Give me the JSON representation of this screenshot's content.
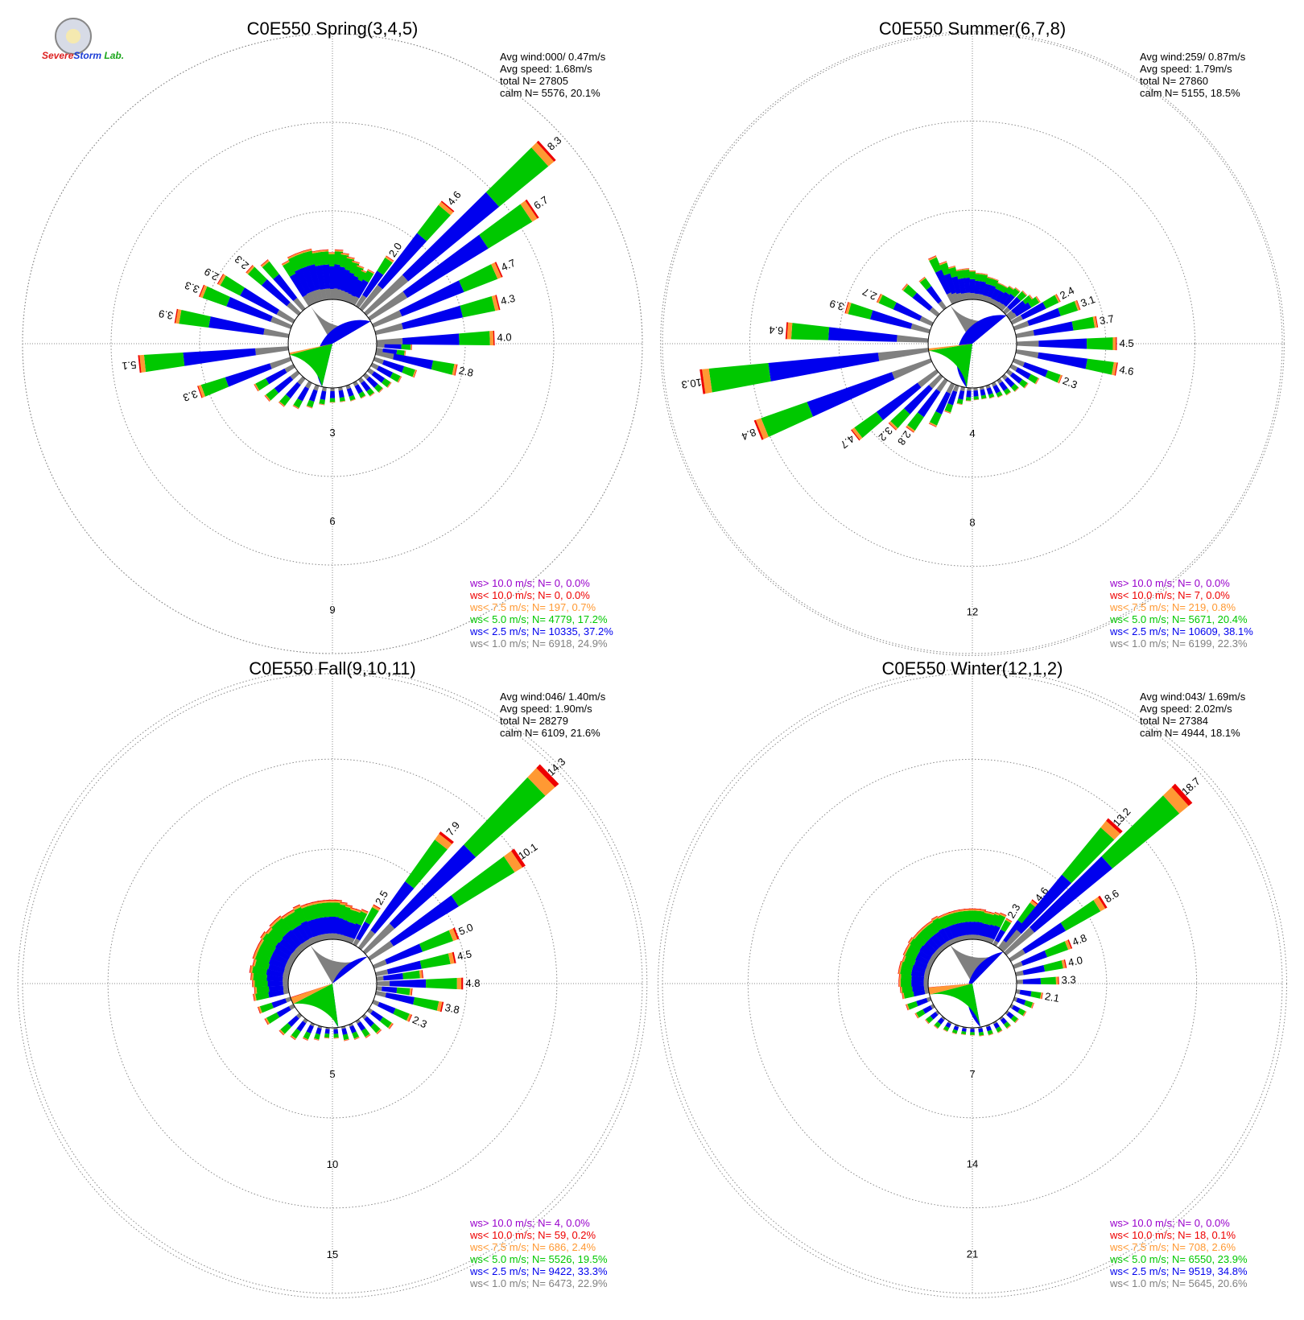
{
  "logo": {
    "word1": "Severe",
    "word2": "Storm",
    "word3": "Lab."
  },
  "colors": {
    "calm": "#808080",
    "lt1": "#808080",
    "lt2_5": "#0000ee",
    "lt5": "#00c800",
    "lt7_5": "#ff9933",
    "lt10": "#ee0000",
    "gt10": "#9900cc",
    "grid": "#888888"
  },
  "chart_data": [
    {
      "type": "wind_rose",
      "title": "C0E550 Spring(3,4,5)",
      "info": [
        "Avg wind:000/ 0.47m/s",
        "Avg speed: 1.68m/s",
        "total N=      27805",
        "calm N=   5576,  20.1%"
      ],
      "rings": [
        3,
        6,
        9
      ],
      "rmax": 10.5,
      "calm_pct": [
        24.9,
        37.2,
        17.2,
        0.7,
        0,
        0
      ],
      "labeled": [
        [
          2.0,
          "2.0"
        ],
        [
          4.6,
          "4.6"
        ],
        [
          8.3,
          "8.3"
        ],
        [
          6.7,
          "6.7"
        ],
        [
          4.7,
          "4.7"
        ],
        [
          4.3,
          "4.3"
        ],
        [
          4.0,
          "4.0"
        ],
        [
          2.8,
          "2.8"
        ],
        [
          2.3,
          "2.3"
        ],
        [
          2.9,
          "2.9"
        ],
        [
          3.3,
          "3.3"
        ],
        [
          3.9,
          "3.9"
        ],
        [
          5.1,
          "5.1"
        ],
        [
          3.3,
          "3.3"
        ]
      ],
      "labeled_dirs": [
        34,
        40,
        48,
        56,
        66,
        76,
        88,
        102,
        312,
        300,
        292,
        280,
        264,
        250
      ],
      "small_dirs": [
        0,
        4,
        8,
        12,
        16,
        20,
        24,
        28,
        330,
        335,
        340,
        345,
        350,
        355,
        320,
        110,
        118,
        126,
        134,
        142,
        150,
        160,
        170,
        180,
        190,
        200,
        210,
        220,
        230,
        240,
        92,
        98
      ],
      "small_vals": [
        1.6,
        1.7,
        1.6,
        1.5,
        1.4,
        1.3,
        1.2,
        1.3,
        1.7,
        1.8,
        1.8,
        1.8,
        1.7,
        1.7,
        2.1,
        1.5,
        1.1,
        0.9,
        0.8,
        0.7,
        0.6,
        0.55,
        0.5,
        0.5,
        0.6,
        0.8,
        1.0,
        1.2,
        1.4,
        1.5,
        1.2,
        1.0
      ],
      "legend": [
        {
          "key": "gt10",
          "text": "ws> 10.0 m/s; N=     0,  0.0%"
        },
        {
          "key": "lt10",
          "text": "ws< 10.0 m/s; N=     0,  0.0%"
        },
        {
          "key": "lt7_5",
          "text": "ws<  7.5 m/s; N=   197,  0.7%"
        },
        {
          "key": "lt5",
          "text": "ws<  5.0 m/s; N=  4779, 17.2%"
        },
        {
          "key": "lt2_5",
          "text": "ws<  2.5 m/s; N= 10335, 37.2%"
        },
        {
          "key": "lt1",
          "text": "ws<  1.0 m/s; N=  6918, 24.9%"
        }
      ]
    },
    {
      "type": "wind_rose",
      "title": "C0E550 Summer(6,7,8)",
      "info": [
        "Avg wind:259/ 0.87m/s",
        "Avg speed: 1.79m/s",
        "total N=      27860",
        "calm N=   5155,  18.5%"
      ],
      "rings": [
        4,
        8,
        12
      ],
      "rmax": 13.9,
      "calm_pct": [
        22.3,
        38.1,
        20.4,
        0.8,
        0.0,
        0
      ],
      "labeled": [
        [
          2.4,
          "2.4"
        ],
        [
          3.1,
          "3.1"
        ],
        [
          3.7,
          "3.7"
        ],
        [
          4.5,
          "4.5"
        ],
        [
          4.6,
          "4.6"
        ],
        [
          2.3,
          "2.3"
        ],
        [
          2.7,
          "2.7"
        ],
        [
          3.9,
          "3.9"
        ],
        [
          6.4,
          "6.4"
        ],
        [
          10.3,
          "10.3"
        ],
        [
          8.4,
          "8.4"
        ],
        [
          4.7,
          "4.7"
        ],
        [
          3.2,
          "3.2"
        ],
        [
          2.8,
          "2.8"
        ]
      ],
      "labeled_dirs": [
        62,
        70,
        80,
        90,
        100,
        112,
        296,
        286,
        274,
        262,
        248,
        232,
        224,
        216
      ],
      "small_dirs": [
        0,
        5,
        10,
        15,
        20,
        25,
        30,
        35,
        40,
        46,
        52,
        56,
        335,
        340,
        345,
        350,
        355,
        322,
        310,
        120,
        128,
        136,
        144,
        152,
        160,
        168,
        176,
        184,
        192,
        200,
        206
      ],
      "small_vals": [
        1.3,
        1.2,
        1.2,
        1.1,
        1.1,
        1.0,
        1.0,
        1.1,
        1.2,
        1.3,
        1.4,
        1.6,
        2.3,
        1.9,
        1.6,
        1.4,
        1.4,
        1.7,
        2.0,
        1.4,
        1.1,
        0.9,
        0.8,
        0.7,
        0.6,
        0.55,
        0.55,
        0.6,
        0.8,
        1.3,
        2.1
      ],
      "legend": [
        {
          "key": "gt10",
          "text": "ws> 10.0 m/s; N=     0,  0.0%"
        },
        {
          "key": "lt10",
          "text": "ws< 10.0 m/s; N=     7,  0.0%"
        },
        {
          "key": "lt7_5",
          "text": "ws<  7.5 m/s; N=   219,  0.8%"
        },
        {
          "key": "lt5",
          "text": "ws<  5.0 m/s; N=  5671, 20.4%"
        },
        {
          "key": "lt2_5",
          "text": "ws<  2.5 m/s; N= 10609, 38.1%"
        },
        {
          "key": "lt1",
          "text": "ws<  1.0 m/s; N=  6199, 22.3%"
        }
      ]
    },
    {
      "type": "wind_rose",
      "title": "C0E550 Fall(9,10,11)",
      "info": [
        "Avg wind:046/ 1.40m/s",
        "Avg speed: 1.90m/s",
        "total N=      28279",
        "calm N=   6109,  21.6%"
      ],
      "rings": [
        5,
        10,
        15
      ],
      "rmax": 17.2,
      "calm_pct": [
        22.9,
        33.3,
        19.5,
        2.4,
        0.2,
        0.0
      ],
      "labeled": [
        [
          2.5,
          "2.5"
        ],
        [
          7.9,
          "7.9"
        ],
        [
          14.3,
          "14.3"
        ],
        [
          10.1,
          "10.1"
        ],
        [
          5.0,
          "5.0"
        ],
        [
          4.5,
          "4.5"
        ],
        [
          4.8,
          "4.8"
        ],
        [
          3.8,
          "3.8"
        ],
        [
          2.3,
          "2.3"
        ]
      ],
      "labeled_dirs": [
        30,
        38,
        46,
        56,
        68,
        78,
        90,
        102,
        114
      ],
      "small_dirs": [
        0,
        4,
        8,
        12,
        16,
        20,
        24,
        340,
        344,
        348,
        352,
        356,
        320,
        325,
        330,
        335,
        300,
        305,
        310,
        315,
        280,
        285,
        290,
        295,
        260,
        265,
        270,
        275,
        240,
        250,
        126,
        136,
        146,
        156,
        166,
        176,
        186,
        196,
        206,
        216,
        226,
        84,
        96
      ],
      "small_vals": [
        2.2,
        2.2,
        2.1,
        2.0,
        1.9,
        1.9,
        2.0,
        2.2,
        2.2,
        2.2,
        2.2,
        2.2,
        2.3,
        2.2,
        2.2,
        2.3,
        2.2,
        2.3,
        2.2,
        2.3,
        2.2,
        2.1,
        2.2,
        2.2,
        2.0,
        1.9,
        2.0,
        2.1,
        1.8,
        1.9,
        1.6,
        1.3,
        1.1,
        0.9,
        0.8,
        0.6,
        0.6,
        0.8,
        1.0,
        1.3,
        1.5,
        2.6,
        2.0
      ],
      "legend": [
        {
          "key": "gt10",
          "text": "ws> 10.0 m/s; N=     4,  0.0%"
        },
        {
          "key": "lt10",
          "text": "ws< 10.0 m/s; N=    59,  0.2%"
        },
        {
          "key": "lt7_5",
          "text": "ws<  7.5 m/s; N=   686,  2.4%"
        },
        {
          "key": "lt5",
          "text": "ws<  5.0 m/s; N=  5526, 19.5%"
        },
        {
          "key": "lt2_5",
          "text": "ws<  2.5 m/s; N=  9422, 33.3%"
        },
        {
          "key": "lt1",
          "text": "ws<  1.0 m/s; N=  6473, 22.9%"
        }
      ]
    },
    {
      "type": "wind_rose",
      "title": "C0E550 Winter(12,1,2)",
      "info": [
        "Avg wind:043/ 1.69m/s",
        "Avg speed: 2.02m/s",
        "total N=      27384",
        "calm N=   4944,  18.1%"
      ],
      "rings": [
        7,
        14,
        21
      ],
      "rmax": 24.1,
      "calm_pct": [
        20.6,
        34.8,
        23.9,
        2.6,
        0.1,
        0
      ],
      "labeled": [
        [
          2.3,
          "2.3"
        ],
        [
          4.6,
          "4.6"
        ],
        [
          13.2,
          "13.2"
        ],
        [
          18.7,
          "18.7"
        ],
        [
          8.6,
          "8.6"
        ],
        [
          4.8,
          "4.8"
        ],
        [
          4.0,
          "4.0"
        ],
        [
          3.3,
          "3.3"
        ],
        [
          2.1,
          "2.1"
        ]
      ],
      "labeled_dirs": [
        30,
        38,
        42,
        48,
        58,
        68,
        78,
        88,
        100
      ],
      "small_dirs": [
        0,
        4,
        8,
        12,
        16,
        20,
        24,
        340,
        344,
        348,
        352,
        356,
        320,
        325,
        330,
        335,
        300,
        305,
        310,
        315,
        280,
        285,
        290,
        295,
        260,
        265,
        270,
        275,
        250,
        110,
        120,
        130,
        140,
        150,
        160,
        170,
        180,
        190,
        200,
        210,
        220,
        230,
        240
      ],
      "small_vals": [
        2.4,
        2.4,
        2.4,
        2.3,
        2.3,
        2.4,
        2.5,
        2.4,
        2.4,
        2.4,
        2.4,
        2.4,
        2.4,
        2.4,
        2.5,
        2.4,
        2.4,
        2.5,
        2.4,
        2.4,
        2.4,
        2.4,
        2.3,
        2.4,
        2.1,
        2.2,
        2.3,
        2.3,
        2.0,
        1.6,
        1.3,
        1.1,
        1.0,
        0.9,
        0.8,
        0.7,
        0.6,
        0.6,
        0.7,
        0.8,
        1.0,
        1.2,
        1.6
      ],
      "legend": [
        {
          "key": "gt10",
          "text": "ws> 10.0 m/s; N=     0,  0.0%"
        },
        {
          "key": "lt10",
          "text": "ws< 10.0 m/s; N=    18,  0.1%"
        },
        {
          "key": "lt7_5",
          "text": "ws<  7.5 m/s; N=   708,  2.6%"
        },
        {
          "key": "lt5",
          "text": "ws<  5.0 m/s; N=  6550, 23.9%"
        },
        {
          "key": "lt2_5",
          "text": "ws<  2.5 m/s; N=  9519, 34.8%"
        },
        {
          "key": "lt1",
          "text": "ws<  1.0 m/s; N=  5645, 20.6%"
        }
      ]
    }
  ]
}
